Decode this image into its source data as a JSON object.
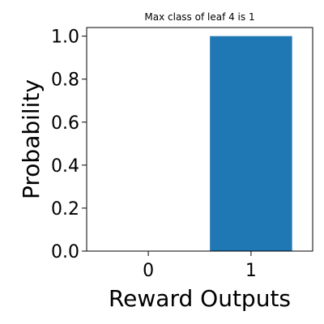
{
  "chart_data": {
    "type": "bar",
    "title": "Max class of leaf 4 is 1",
    "xlabel": "Reward Outputs",
    "ylabel": "Probability",
    "categories": [
      "0",
      "1"
    ],
    "values": [
      0.0,
      1.0
    ],
    "ylim": [
      0,
      1.04
    ],
    "yticks": [
      "0.0",
      "0.2",
      "0.4",
      "0.6",
      "0.8",
      "1.0"
    ],
    "grid": false,
    "bar_color": "#1f77b4"
  }
}
